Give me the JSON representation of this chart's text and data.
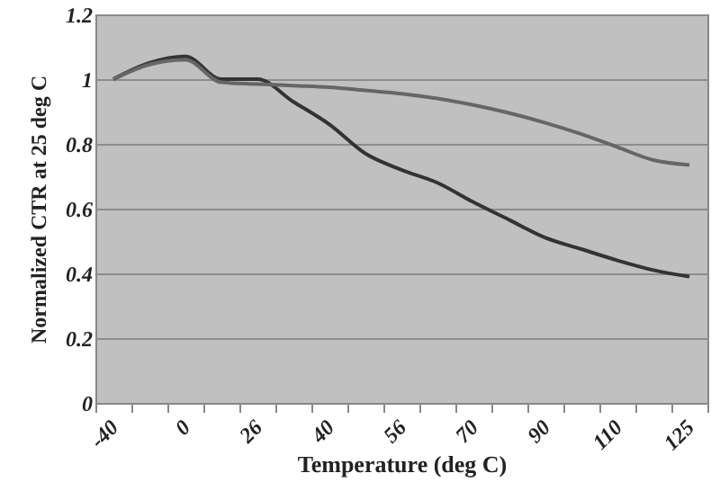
{
  "chart_data": {
    "type": "line",
    "xlabel": "Temperature (deg C)",
    "ylabel": "Normalized CTR at 25 deg C",
    "categories": [
      "-40",
      null,
      "0",
      null,
      "26",
      null,
      "40",
      null,
      "56",
      null,
      "70",
      null,
      "90",
      null,
      "110",
      null,
      "125"
    ],
    "series": [
      {
        "color": "#333333",
        "values": [
          1.0,
          1.05,
          1.07,
          1.0,
          1.0,
          0.93,
          0.86,
          0.77,
          0.72,
          0.68,
          0.62,
          0.565,
          0.51,
          0.475,
          0.44,
          0.41,
          0.39
        ]
      },
      {
        "color": "#666666",
        "values": [
          1.0,
          1.045,
          1.06,
          0.99,
          0.985,
          0.98,
          0.975,
          0.965,
          0.955,
          0.94,
          0.92,
          0.895,
          0.865,
          0.83,
          0.79,
          0.75,
          0.735
        ]
      }
    ],
    "ylim": [
      0,
      1.2
    ],
    "yticks": [
      0,
      0.2,
      0.4,
      0.6,
      0.8,
      1,
      1.2
    ],
    "grid": "y"
  }
}
